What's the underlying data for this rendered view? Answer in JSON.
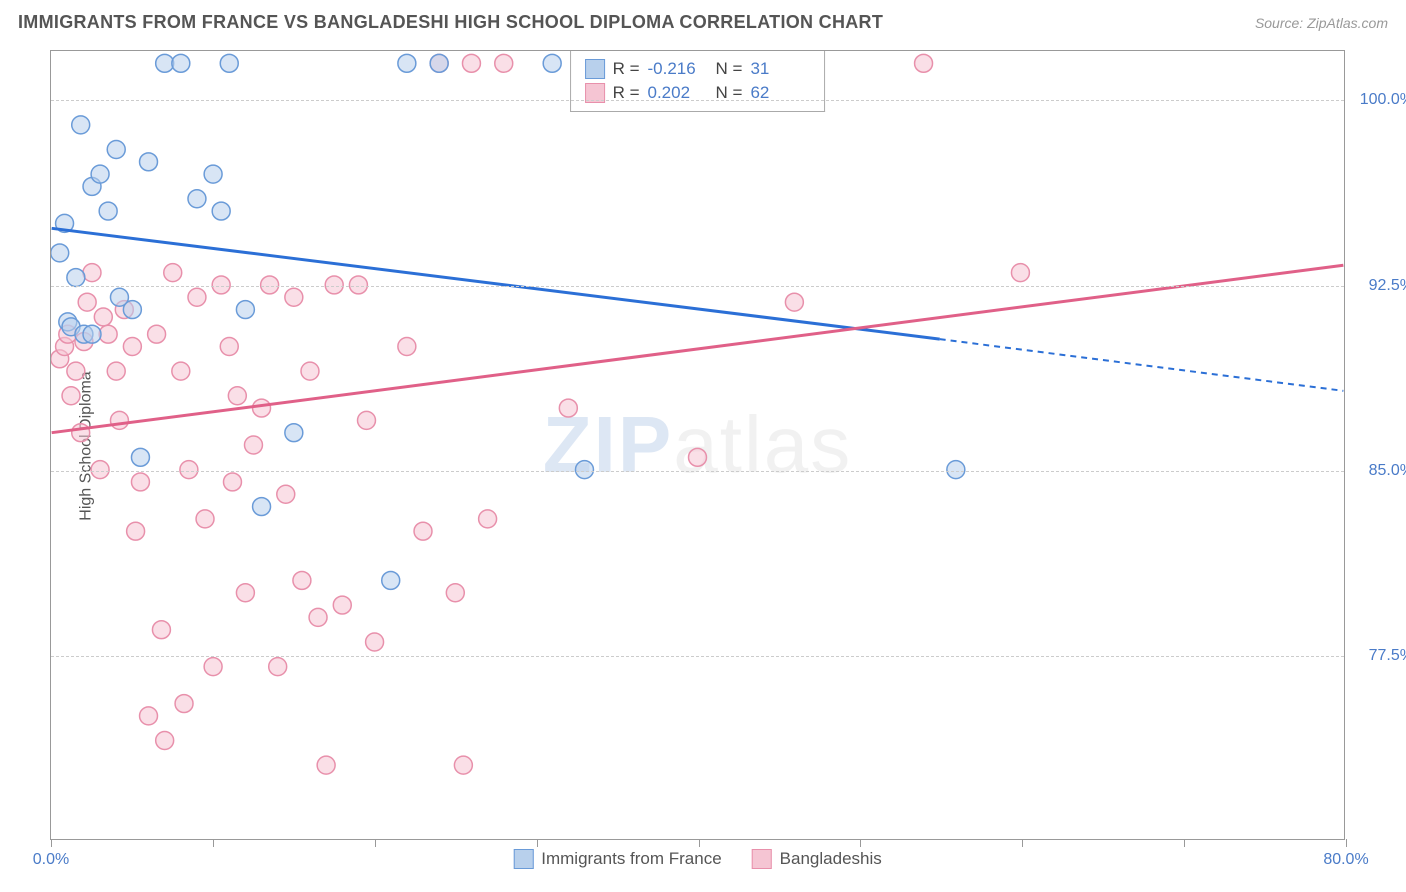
{
  "header": {
    "title": "IMMIGRANTS FROM FRANCE VS BANGLADESHI HIGH SCHOOL DIPLOMA CORRELATION CHART",
    "source": "Source: ZipAtlas.com"
  },
  "chart": {
    "type": "scatter",
    "ylabel": "High School Diploma",
    "xlim": [
      0,
      80
    ],
    "ylim": [
      70,
      102
    ],
    "xtick_positions": [
      0,
      10,
      20,
      30,
      40,
      50,
      60,
      70,
      80
    ],
    "xtick_labels_shown": {
      "0": "0.0%",
      "80": "80.0%"
    },
    "ytick_positions": [
      77.5,
      85.0,
      92.5,
      100.0
    ],
    "ytick_labels": [
      "77.5%",
      "85.0%",
      "92.5%",
      "100.0%"
    ],
    "background_color": "#ffffff",
    "grid_color": "#cccccc",
    "axis_color": "#999999",
    "label_color": "#4a7bc8",
    "watermark": "ZIPatlas",
    "series": [
      {
        "name": "Immigrants from France",
        "color_fill": "#b8d0ec",
        "color_stroke": "#6a9bd8",
        "marker_radius": 9,
        "fill_opacity": 0.55,
        "R": "-0.216",
        "N": "31",
        "regression": {
          "x1": 0,
          "y1": 94.8,
          "x2_solid": 55,
          "y2_solid": 90.3,
          "x2_dash": 80,
          "y2_dash": 88.2,
          "stroke": "#2b6fd6",
          "width": 3
        },
        "points": [
          [
            0.5,
            93.8
          ],
          [
            0.8,
            95
          ],
          [
            1,
            91
          ],
          [
            1.2,
            90.8
          ],
          [
            1.5,
            92.8
          ],
          [
            1.8,
            99
          ],
          [
            2,
            90.5
          ],
          [
            2.5,
            96.5
          ],
          [
            3,
            97
          ],
          [
            3.5,
            95.5
          ],
          [
            4,
            98
          ],
          [
            4.2,
            92
          ],
          [
            5,
            91.5
          ],
          [
            5.5,
            85.5
          ],
          [
            6,
            97.5
          ],
          [
            7,
            101.5
          ],
          [
            8,
            101.5
          ],
          [
            9,
            96
          ],
          [
            10,
            97
          ],
          [
            10.5,
            95.5
          ],
          [
            11,
            101.5
          ],
          [
            12,
            91.5
          ],
          [
            13,
            83.5
          ],
          [
            15,
            86.5
          ],
          [
            21,
            80.5
          ],
          [
            22,
            101.5
          ],
          [
            24,
            101.5
          ],
          [
            31,
            101.5
          ],
          [
            33,
            85
          ],
          [
            56,
            85
          ],
          [
            2.5,
            90.5
          ]
        ]
      },
      {
        "name": "Bangladeshis",
        "color_fill": "#f5c5d3",
        "color_stroke": "#e890ab",
        "marker_radius": 9,
        "fill_opacity": 0.55,
        "R": "0.202",
        "N": "62",
        "regression": {
          "x1": 0,
          "y1": 86.5,
          "x2_solid": 80,
          "y2_solid": 93.3,
          "stroke": "#e06088",
          "width": 3
        },
        "points": [
          [
            0.5,
            89.5
          ],
          [
            0.8,
            90
          ],
          [
            1,
            90.5
          ],
          [
            1.2,
            88
          ],
          [
            1.5,
            89
          ],
          [
            1.8,
            86.5
          ],
          [
            2,
            90.2
          ],
          [
            2.5,
            93
          ],
          [
            3,
            85
          ],
          [
            3.5,
            90.5
          ],
          [
            4,
            89
          ],
          [
            4.2,
            87
          ],
          [
            4.5,
            91.5
          ],
          [
            5,
            90
          ],
          [
            5.2,
            82.5
          ],
          [
            5.5,
            84.5
          ],
          [
            6,
            75
          ],
          [
            6.5,
            90.5
          ],
          [
            7,
            74
          ],
          [
            7.5,
            93
          ],
          [
            8,
            89
          ],
          [
            8.5,
            85
          ],
          [
            9,
            92
          ],
          [
            9.5,
            83
          ],
          [
            10,
            77
          ],
          [
            10.5,
            92.5
          ],
          [
            11,
            90
          ],
          [
            11.5,
            88
          ],
          [
            12,
            80
          ],
          [
            12.5,
            86
          ],
          [
            13,
            87.5
          ],
          [
            13.5,
            92.5
          ],
          [
            14,
            77
          ],
          [
            14.5,
            84
          ],
          [
            15,
            92
          ],
          [
            15.5,
            80.5
          ],
          [
            16,
            89
          ],
          [
            17,
            73
          ],
          [
            17.5,
            92.5
          ],
          [
            18,
            79.5
          ],
          [
            19,
            92.5
          ],
          [
            19.5,
            87
          ],
          [
            20,
            78
          ],
          [
            22,
            90
          ],
          [
            23,
            82.5
          ],
          [
            24,
            101.5
          ],
          [
            25,
            80
          ],
          [
            25.5,
            73
          ],
          [
            26,
            101.5
          ],
          [
            27,
            83
          ],
          [
            28,
            101.5
          ],
          [
            32,
            87.5
          ],
          [
            40,
            85.5
          ],
          [
            46,
            91.8
          ],
          [
            54,
            101.5
          ],
          [
            60,
            93
          ],
          [
            3.2,
            91.2
          ],
          [
            6.8,
            78.5
          ],
          [
            8.2,
            75.5
          ],
          [
            11.2,
            84.5
          ],
          [
            16.5,
            79
          ],
          [
            2.2,
            91.8
          ]
        ]
      }
    ],
    "legend_top": {
      "rows": [
        {
          "swatch_fill": "#b8d0ec",
          "swatch_stroke": "#6a9bd8",
          "R": "-0.216",
          "N": "31"
        },
        {
          "swatch_fill": "#f5c5d3",
          "swatch_stroke": "#e890ab",
          "R": "0.202",
          "N": "62"
        }
      ]
    },
    "legend_bottom": {
      "items": [
        {
          "swatch_fill": "#b8d0ec",
          "swatch_stroke": "#6a9bd8",
          "label": "Immigrants from France"
        },
        {
          "swatch_fill": "#f5c5d3",
          "swatch_stroke": "#e890ab",
          "label": "Bangladeshis"
        }
      ]
    }
  }
}
